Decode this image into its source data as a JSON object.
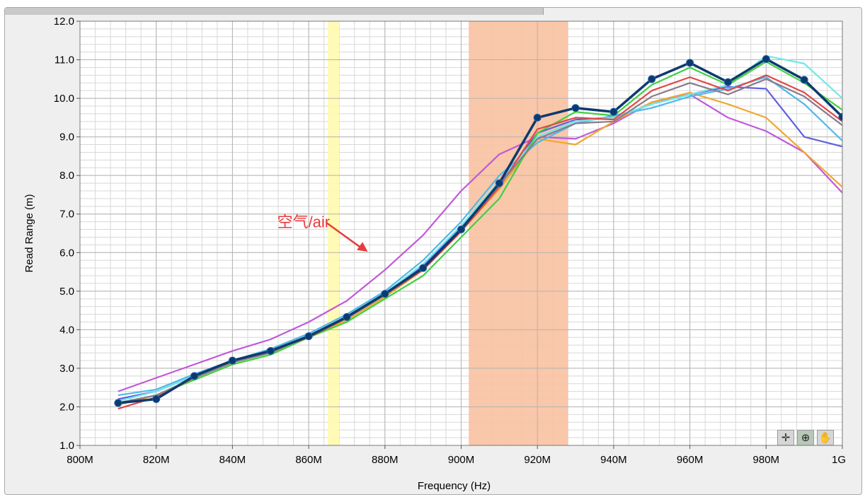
{
  "chart_data": {
    "type": "line",
    "title": "",
    "xlabel": "Frequency (Hz)",
    "ylabel": "Read Range (m)",
    "xlim": [
      800,
      1000
    ],
    "ylim": [
      1.0,
      12.0
    ],
    "x_ticks": [
      {
        "value": 800,
        "label": "800M"
      },
      {
        "value": 820,
        "label": "820M"
      },
      {
        "value": 840,
        "label": "840M"
      },
      {
        "value": 860,
        "label": "860M"
      },
      {
        "value": 880,
        "label": "880M"
      },
      {
        "value": 900,
        "label": "900M"
      },
      {
        "value": 920,
        "label": "920M"
      },
      {
        "value": 940,
        "label": "940M"
      },
      {
        "value": 960,
        "label": "960M"
      },
      {
        "value": 980,
        "label": "980M"
      },
      {
        "value": 1000,
        "label": "1G"
      }
    ],
    "y_ticks": [
      {
        "value": 1.0,
        "label": "1.0"
      },
      {
        "value": 2.0,
        "label": "2.0"
      },
      {
        "value": 3.0,
        "label": "3.0"
      },
      {
        "value": 4.0,
        "label": "4.0"
      },
      {
        "value": 5.0,
        "label": "5.0"
      },
      {
        "value": 6.0,
        "label": "6.0"
      },
      {
        "value": 7.0,
        "label": "7.0"
      },
      {
        "value": 8.0,
        "label": "8.0"
      },
      {
        "value": 9.0,
        "label": "9.0"
      },
      {
        "value": 10.0,
        "label": "10.0"
      },
      {
        "value": 11.0,
        "label": "11.0"
      },
      {
        "value": 12.0,
        "label": "12.0"
      }
    ],
    "grid": true,
    "minor_grid_per_major_x": 5,
    "minor_grid_per_major_y": 5,
    "bands": [
      {
        "x0": 865,
        "x1": 868,
        "color": "#fffab0"
      },
      {
        "x0": 902,
        "x1": 928,
        "color": "#f9c2a2"
      }
    ],
    "x": [
      810,
      820,
      830,
      840,
      850,
      860,
      870,
      880,
      890,
      900,
      910,
      920,
      930,
      940,
      950,
      960,
      970,
      980,
      990,
      1000
    ],
    "series": [
      {
        "color": "#c05ad8",
        "values": [
          2.4,
          2.75,
          3.1,
          3.45,
          3.75,
          4.2,
          4.75,
          5.55,
          6.45,
          7.6,
          8.55,
          9.0,
          8.95,
          9.35,
          9.9,
          10.1,
          9.5,
          9.15,
          8.6,
          7.55
        ]
      },
      {
        "color": "#f0a830",
        "values": [
          2.05,
          2.3,
          2.75,
          3.15,
          3.4,
          3.8,
          4.25,
          4.85,
          5.55,
          6.55,
          7.65,
          8.95,
          8.8,
          9.4,
          9.9,
          10.15,
          9.85,
          9.5,
          8.6,
          7.7
        ]
      },
      {
        "color": "#6060e0",
        "values": [
          2.2,
          2.4,
          2.8,
          3.2,
          3.45,
          3.85,
          4.35,
          4.95,
          5.65,
          6.65,
          7.8,
          9.1,
          9.45,
          9.5,
          9.85,
          10.1,
          10.3,
          10.25,
          9.0,
          8.75
        ]
      },
      {
        "color": "#50b8e8",
        "values": [
          2.3,
          2.45,
          2.85,
          3.2,
          3.5,
          3.9,
          4.4,
          5.0,
          5.8,
          6.8,
          8.0,
          8.85,
          9.35,
          9.55,
          9.75,
          10.05,
          10.25,
          10.55,
          9.85,
          8.9
        ]
      },
      {
        "color": "#70e8e8",
        "values": [
          2.15,
          2.4,
          2.8,
          3.15,
          3.45,
          3.85,
          4.35,
          4.95,
          5.7,
          6.7,
          7.85,
          9.0,
          9.4,
          9.5,
          9.85,
          10.1,
          10.35,
          11.1,
          10.9,
          10.0
        ]
      },
      {
        "color": "#40d040",
        "values": [
          2.1,
          2.3,
          2.7,
          3.1,
          3.35,
          3.8,
          4.2,
          4.8,
          5.4,
          6.4,
          7.4,
          9.1,
          9.65,
          9.55,
          10.35,
          10.8,
          10.35,
          10.95,
          10.4,
          9.7
        ]
      },
      {
        "color": "#e04848",
        "values": [
          1.95,
          2.25,
          2.75,
          3.15,
          3.45,
          3.8,
          4.3,
          4.9,
          5.55,
          6.55,
          7.7,
          9.2,
          9.5,
          9.45,
          10.2,
          10.55,
          10.2,
          10.6,
          10.15,
          9.4
        ]
      },
      {
        "color": "#8a7a8a",
        "values": [
          2.1,
          2.3,
          2.75,
          3.15,
          3.4,
          3.85,
          4.3,
          4.9,
          5.6,
          6.6,
          7.75,
          8.95,
          9.35,
          9.4,
          10.05,
          10.4,
          10.1,
          10.5,
          10.05,
          9.3
        ]
      },
      {
        "color": "#0c3a6e",
        "marker": "circle",
        "values": [
          2.1,
          2.2,
          2.8,
          3.2,
          3.45,
          3.83,
          4.33,
          4.93,
          5.6,
          6.6,
          7.8,
          9.5,
          9.75,
          9.65,
          10.5,
          10.92,
          10.42,
          11.02,
          10.48,
          9.52
        ]
      }
    ],
    "annotation": {
      "text": "空气/air",
      "x": 869,
      "y": 6.8,
      "arrow_from": [
        872,
        6.45
      ],
      "arrow_to": [
        882,
        5.95
      ],
      "color": "#e83c3c"
    }
  },
  "toolbar": {
    "cursor_tool": "crosshair-icon",
    "zoom_tool": "zoom-icon",
    "pan_tool": "hand-icon"
  }
}
